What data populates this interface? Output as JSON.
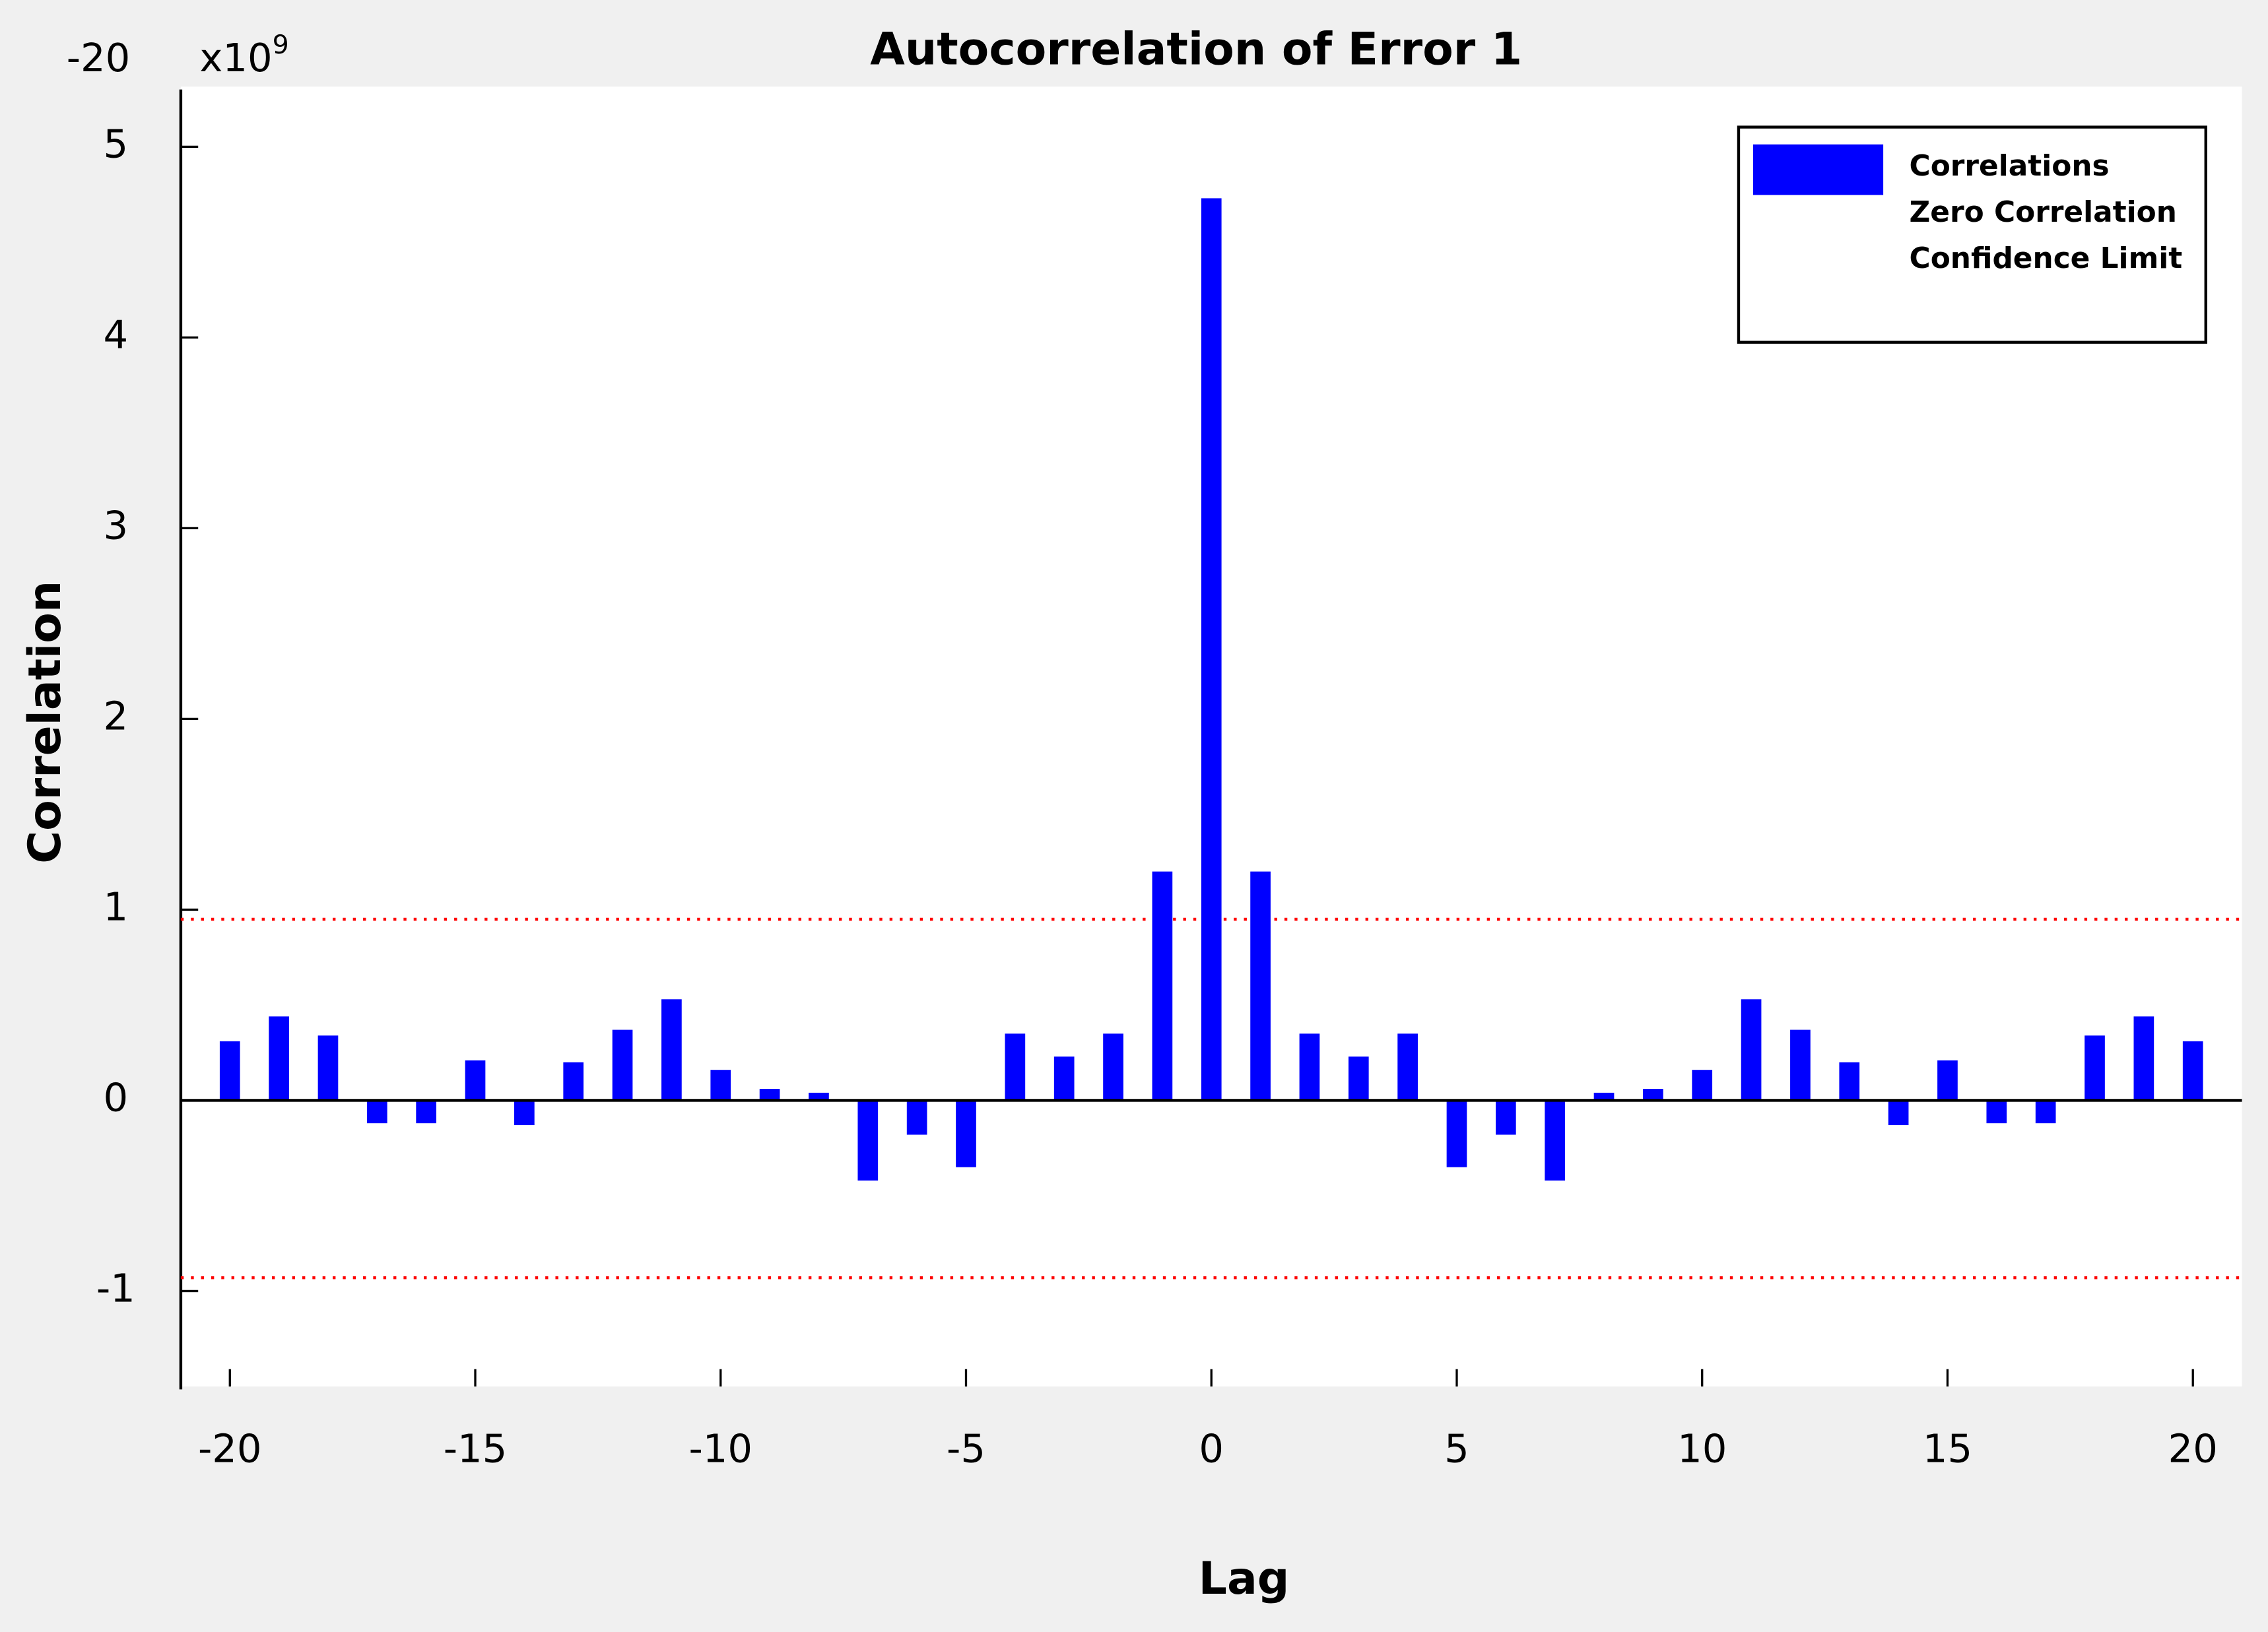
{
  "chart_data": {
    "type": "bar",
    "title": "Autocorrelation of Error 1",
    "corner_label": "-20",
    "y_multiplier": "x10",
    "y_multiplier_exponent": "9",
    "x_label": "Lag",
    "y_label": "Correlation",
    "x": [
      -20,
      -19,
      -18,
      -17,
      -16,
      -15,
      -14,
      -13,
      -12,
      -11,
      -10,
      -9,
      -8,
      -7,
      -6,
      -5,
      -4,
      -3,
      -2,
      -1,
      0,
      1,
      2,
      3,
      4,
      5,
      6,
      7,
      8,
      9,
      10,
      11,
      12,
      13,
      14,
      15,
      16,
      17,
      18,
      19,
      20
    ],
    "series": [
      {
        "name": "Correlations",
        "color": "#0000ff",
        "values": [
          0.31,
          0.44,
          0.34,
          -0.12,
          -0.12,
          0.21,
          -0.13,
          0.2,
          0.37,
          0.53,
          0.16,
          0.06,
          0.04,
          -0.42,
          -0.18,
          -0.35,
          0.35,
          0.23,
          0.35,
          1.2,
          4.73,
          1.2,
          0.35,
          0.23,
          0.35,
          -0.35,
          -0.18,
          -0.42,
          0.04,
          0.06,
          0.16,
          0.53,
          0.37,
          0.2,
          -0.13,
          0.21,
          -0.12,
          -0.12,
          0.34,
          0.44,
          0.31
        ]
      }
    ],
    "zero_line": {
      "name": "Zero Correlation",
      "color": "#000000"
    },
    "confidence_limit": {
      "name": "Confidence Limit",
      "color": "#ff0000",
      "values": [
        0.95,
        -0.93
      ]
    },
    "xlim": [
      -21,
      21
    ],
    "ylim": [
      -1.5,
      5.3
    ],
    "xticks": [
      -20,
      -15,
      -10,
      -5,
      0,
      5,
      10,
      15,
      20
    ],
    "yticks": [
      -1,
      0,
      1,
      2,
      3,
      4,
      5
    ],
    "legend": "upper right"
  }
}
